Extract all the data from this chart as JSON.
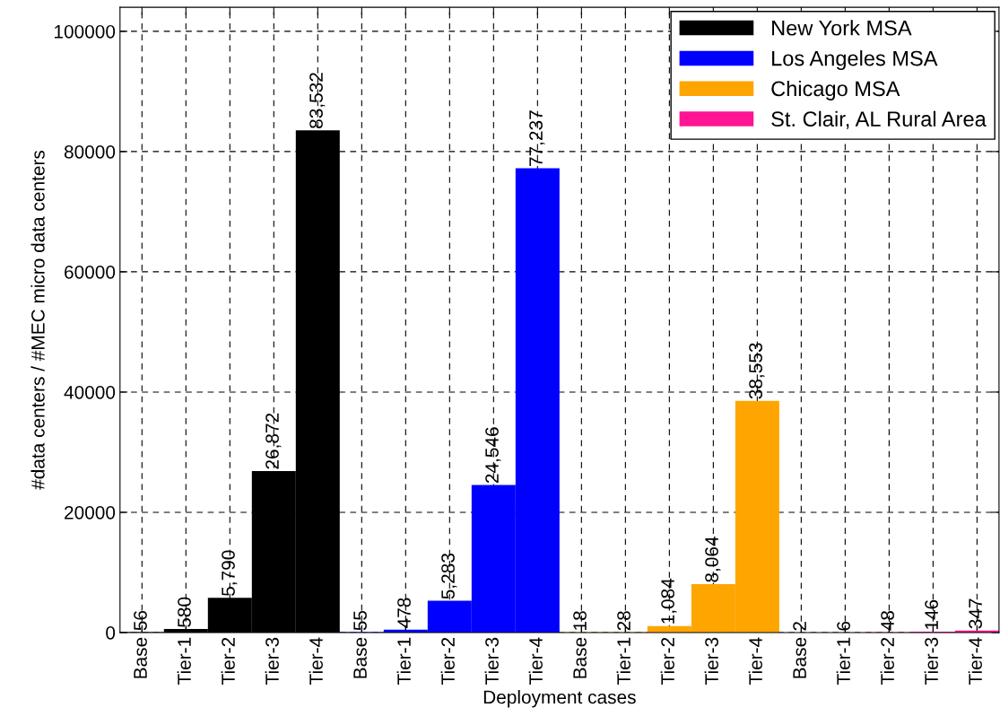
{
  "chart_data": {
    "type": "bar",
    "xlabel": "Deployment cases",
    "ylabel": "#data centers / #MEC micro data centers",
    "categories": [
      "Base",
      "Tier-1",
      "Tier-2",
      "Tier-3",
      "Tier-4",
      "Base",
      "Tier-1",
      "Tier-2",
      "Tier-3",
      "Tier-4",
      "Base",
      "Tier-1",
      "Tier-2",
      "Tier-3",
      "Tier-4",
      "Base",
      "Tier-1",
      "Tier-2",
      "Tier-3",
      "Tier-4"
    ],
    "series": [
      {
        "name": "New York MSA",
        "color": "#000000",
        "values": [
          56,
          580,
          5790,
          26872,
          83532,
          null,
          null,
          null,
          null,
          null,
          null,
          null,
          null,
          null,
          null,
          null,
          null,
          null,
          null,
          null
        ],
        "value_labels": [
          "56",
          "580",
          "5,790",
          "26,872",
          "83,532",
          null,
          null,
          null,
          null,
          null,
          null,
          null,
          null,
          null,
          null,
          null,
          null,
          null,
          null,
          null
        ]
      },
      {
        "name": "Los Angeles MSA",
        "color": "#0000ff",
        "values": [
          null,
          null,
          null,
          null,
          null,
          55,
          478,
          5283,
          24546,
          77237,
          null,
          null,
          null,
          null,
          null,
          null,
          null,
          null,
          null,
          null
        ],
        "value_labels": [
          null,
          null,
          null,
          null,
          null,
          "55",
          "478",
          "5,283",
          "24,546",
          "77,237",
          null,
          null,
          null,
          null,
          null,
          null,
          null,
          null,
          null,
          null
        ]
      },
      {
        "name": "Chicago MSA",
        "color": "#ffa500",
        "values": [
          null,
          null,
          null,
          null,
          null,
          null,
          null,
          null,
          null,
          null,
          18,
          28,
          1084,
          8064,
          38553,
          null,
          null,
          null,
          null,
          null
        ],
        "value_labels": [
          null,
          null,
          null,
          null,
          null,
          null,
          null,
          null,
          null,
          null,
          "18",
          "28",
          "1,084",
          "8,064",
          "38,553",
          null,
          null,
          null,
          null,
          null
        ]
      },
      {
        "name": "St. Clair, AL Rural Area",
        "color": "#ff1493",
        "values": [
          null,
          null,
          null,
          null,
          null,
          null,
          null,
          null,
          null,
          null,
          null,
          null,
          null,
          null,
          null,
          2,
          6,
          48,
          146,
          347
        ],
        "value_labels": [
          null,
          null,
          null,
          null,
          null,
          null,
          null,
          null,
          null,
          null,
          null,
          null,
          null,
          null,
          null,
          "2",
          "6",
          "48",
          "146",
          "347"
        ]
      }
    ],
    "ylim": [
      0,
      104000
    ],
    "yticks": [
      0,
      20000,
      40000,
      60000,
      80000,
      100000
    ],
    "grid": true,
    "legend": "top right"
  }
}
